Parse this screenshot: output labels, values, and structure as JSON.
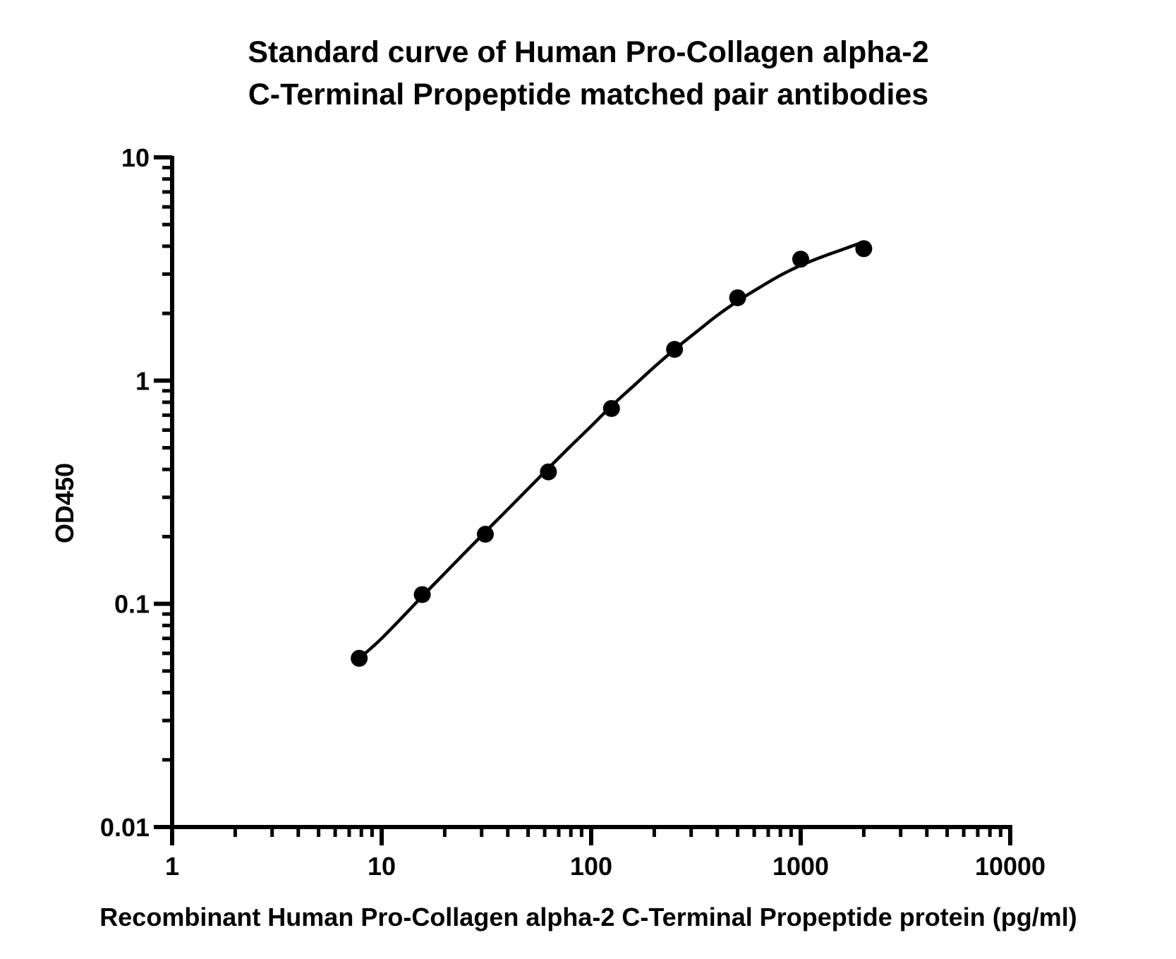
{
  "chart_data": {
    "type": "scatter",
    "title_lines": [
      "Standard curve of Human Pro-Collagen alpha-2",
      "C-Terminal Propeptide matched pair antibodies"
    ],
    "xlabel": "Recombinant Human Pro-Collagen alpha-2 C-Terminal Propeptide protein (pg/ml)",
    "ylabel": "OD450",
    "x_scale": "log",
    "y_scale": "log",
    "xlim": [
      1,
      10000
    ],
    "ylim": [
      0.01,
      10
    ],
    "x_ticks": [
      "1",
      "10",
      "100",
      "1000",
      "10000"
    ],
    "y_ticks": [
      "0.01",
      "0.1",
      "1",
      "10"
    ],
    "grid": false,
    "series": [
      {
        "points": [
          {
            "x": 7.8125,
            "y": 0.057
          },
          {
            "x": 15.625,
            "y": 0.11
          },
          {
            "x": 31.25,
            "y": 0.205
          },
          {
            "x": 62.5,
            "y": 0.39
          },
          {
            "x": 125,
            "y": 0.75
          },
          {
            "x": 250,
            "y": 1.38
          },
          {
            "x": 500,
            "y": 2.35
          },
          {
            "x": 1000,
            "y": 3.5
          },
          {
            "x": 2000,
            "y": 3.9
          }
        ],
        "fit_curve": [
          {
            "x": 7.8125,
            "y": 0.057
          },
          {
            "x": 10,
            "y": 0.07
          },
          {
            "x": 15.625,
            "y": 0.108
          },
          {
            "x": 20,
            "y": 0.137
          },
          {
            "x": 31.25,
            "y": 0.21
          },
          {
            "x": 40,
            "y": 0.265
          },
          {
            "x": 62.5,
            "y": 0.405
          },
          {
            "x": 80,
            "y": 0.51
          },
          {
            "x": 100,
            "y": 0.625
          },
          {
            "x": 125,
            "y": 0.77
          },
          {
            "x": 160,
            "y": 0.95
          },
          {
            "x": 200,
            "y": 1.15
          },
          {
            "x": 250,
            "y": 1.38
          },
          {
            "x": 320,
            "y": 1.66
          },
          {
            "x": 400,
            "y": 1.96
          },
          {
            "x": 500,
            "y": 2.27
          },
          {
            "x": 640,
            "y": 2.62
          },
          {
            "x": 800,
            "y": 2.96
          },
          {
            "x": 1000,
            "y": 3.28
          },
          {
            "x": 1280,
            "y": 3.6
          },
          {
            "x": 1600,
            "y": 3.88
          },
          {
            "x": 2000,
            "y": 4.18
          }
        ]
      }
    ]
  }
}
